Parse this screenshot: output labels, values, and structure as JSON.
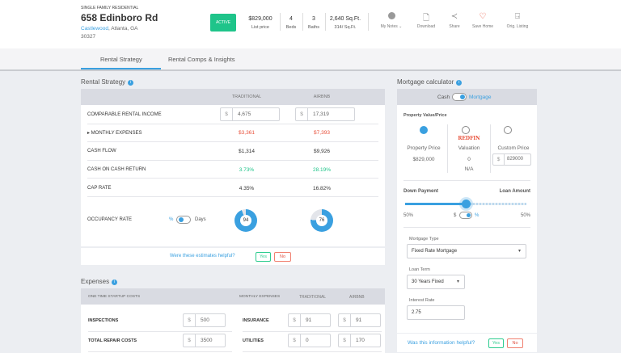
{
  "header": {
    "property_type": "SINGLE FAMILY RESIDENTIAL",
    "address": "658 Edinboro Rd",
    "neighborhood": "Castlewood",
    "city": ", Atlanta, GA",
    "zip": "30327",
    "status": "ACTIVE",
    "price": "$829,000",
    "price_label": "List price",
    "beds": "4",
    "beds_label": "Beds",
    "baths": "3",
    "baths_label": "Baths",
    "sqft": "2,640 Sq.Ft.",
    "price_per_sqft": "314/ Sq.Ft.",
    "actions": [
      "My Notes ⌄",
      "Download",
      "Share",
      "Save Home",
      "Orig. Listing"
    ]
  },
  "tabs": [
    "Rental Strategy",
    "Rental Comps & Insights"
  ],
  "rental": {
    "title": "Rental Strategy",
    "col_traditional": "TRADITIONAL",
    "col_airbnb": "AIRBNB",
    "rows": [
      {
        "label": "COMPARABLE RENTAL INCOME",
        "trad": "4,675",
        "airbnb": "17,319"
      },
      {
        "label": "▸ MONTHLY EXPENSES",
        "trad": "$3,361",
        "airbnb": "$7,393"
      },
      {
        "label": "CASH FLOW",
        "trad": "$1,314",
        "airbnb": "$9,926"
      },
      {
        "label": "CASH ON CASH RETURN",
        "trad": "3.73%",
        "airbnb": "28.19%"
      },
      {
        "label": "CAP RATE",
        "trad": "4.35%",
        "airbnb": "16.82%"
      }
    ],
    "occupancy_label": "OCCUPANCY RATE",
    "toggle_left": "%",
    "toggle_right": "Days",
    "occ_trad": "94",
    "occ_airbnb": "76",
    "currency": "$",
    "helpful": "Were these estimates helpful?",
    "yes": "Yes",
    "no": "No"
  },
  "expenses": {
    "title": "Expenses",
    "col_startup": "ONE TIME STARTUP COSTS",
    "col_monthly": "MONTHLY EXPENSES",
    "col_trad": "TRADITIONAL",
    "col_airbnb": "AIRBNB",
    "startup": [
      {
        "label": "INSPECTIONS",
        "value": "500"
      },
      {
        "label": "TOTAL REPAIR COSTS",
        "value": "3500"
      }
    ],
    "monthly": [
      {
        "label": "INSURANCE",
        "trad": "91",
        "airbnb": "91"
      },
      {
        "label": "UTILITIES",
        "trad": "0",
        "airbnb": "170"
      }
    ]
  },
  "mortgage": {
    "title": "Mortgage calculator",
    "cash": "Cash",
    "mortgage": "Mortgage",
    "pv_title": "Property Value/Price",
    "opt1_label": "Property Price",
    "opt1_value": "$829,000",
    "redfin": "REDFIN",
    "opt2_label": "Valuation",
    "opt2_value": "0",
    "opt2_sub": "N/A",
    "opt3_label": "Custom Price",
    "opt3_value": "829000",
    "currency": "$",
    "down_payment": "Down Payment",
    "loan_amount": "Loan Amount",
    "down_pct": "50%",
    "loan_pct": "50%",
    "slider_fraction": 0.5,
    "unit_dollar": "$",
    "unit_pct": "%",
    "type_label": "Mortgage Type",
    "type_value": "Fixed Rate Mortgage",
    "term_label": "Loan Term",
    "term_value": "30 Years Fixed",
    "rate_label": "Interest Rate",
    "rate_value": "2.75",
    "helpful": "Was this information helpful?",
    "yes": "Yes",
    "no": "No"
  },
  "colors": {
    "accent": "#3aa0e0",
    "active": "#1fc48a",
    "negative": "#e8503a",
    "positive": "#1fc48a"
  }
}
